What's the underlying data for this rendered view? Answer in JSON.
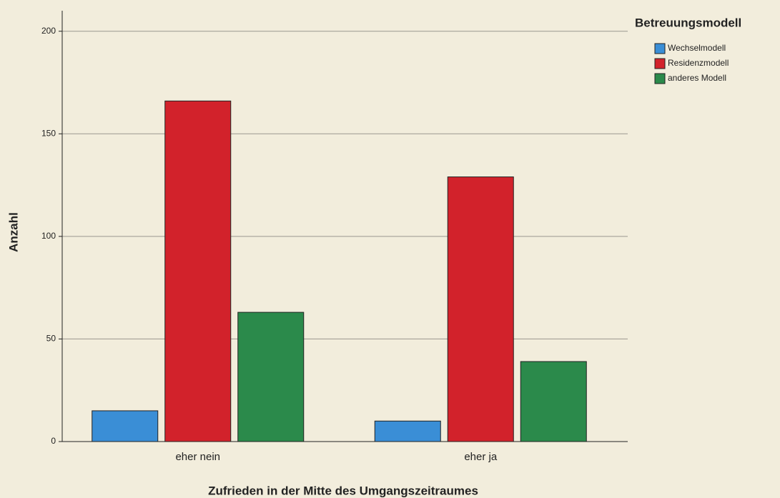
{
  "chart_data": {
    "type": "bar",
    "x_label": "Zufrieden in der Mitte des Umgangszeitraumes",
    "y_label": "Anzahl",
    "legend_title": "Betreuungsmodell",
    "categories": [
      "eher nein",
      "eher ja"
    ],
    "series": [
      {
        "name": "Wechselmodell",
        "color": "#3a8ed6",
        "values": [
          15,
          10
        ]
      },
      {
        "name": "Residenzmodell",
        "color": "#d2222b",
        "values": [
          166,
          129
        ]
      },
      {
        "name": "anderes Modell",
        "color": "#2b8a4b",
        "values": [
          63,
          39
        ]
      }
    ],
    "ylim": [
      0,
      210
    ],
    "yticks": [
      0,
      50,
      100,
      150,
      200
    ],
    "grid": true,
    "legend": "upper right"
  }
}
